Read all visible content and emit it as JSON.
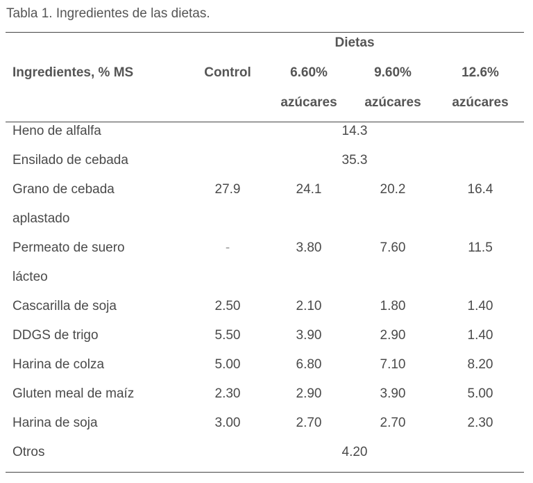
{
  "caption": "Tabla 1. Ingredientes de las dietas.",
  "header": {
    "group": "Dietas",
    "ingredients": "Ingredientes, % MS",
    "control": "Control",
    "d1_line1": "6.60%",
    "d1_line2": "azúcares",
    "d2_line1": "9.60%",
    "d2_line2": "azúcares",
    "d3_line1": "12.6%",
    "d3_line2": "azúcares"
  },
  "rows": [
    {
      "name": "Heno de alfalfa",
      "shared": "14.3"
    },
    {
      "name": "Ensilado de cebada",
      "shared": "35.3"
    },
    {
      "name_line1": "Grano de cebada",
      "name_line2": "aplastado",
      "control": "27.9",
      "d1": "24.1",
      "d2": "20.2",
      "d3": "16.4"
    },
    {
      "name_line1": "Permeato de suero",
      "name_line2": "lácteo",
      "control": "-",
      "d1": "3.80",
      "d2": "7.60",
      "d3": "11.5"
    },
    {
      "name": "Cascarilla de soja",
      "control": "2.50",
      "d1": "2.10",
      "d2": "1.80",
      "d3": "1.40"
    },
    {
      "name": "DDGS de trigo",
      "control": "5.50",
      "d1": "3.90",
      "d2": "2.90",
      "d3": "1.40"
    },
    {
      "name": "Harina de colza",
      "control": "5.00",
      "d1": "6.80",
      "d2": "7.10",
      "d3": "8.20"
    },
    {
      "name": "Gluten meal de maíz",
      "control": "2.30",
      "d1": "2.90",
      "d2": "3.90",
      "d3": "5.00"
    },
    {
      "name": "Harina de soja",
      "control": "3.00",
      "d1": "2.70",
      "d2": "2.70",
      "d3": "2.30"
    },
    {
      "name": "Otros",
      "shared": "4.20"
    }
  ]
}
